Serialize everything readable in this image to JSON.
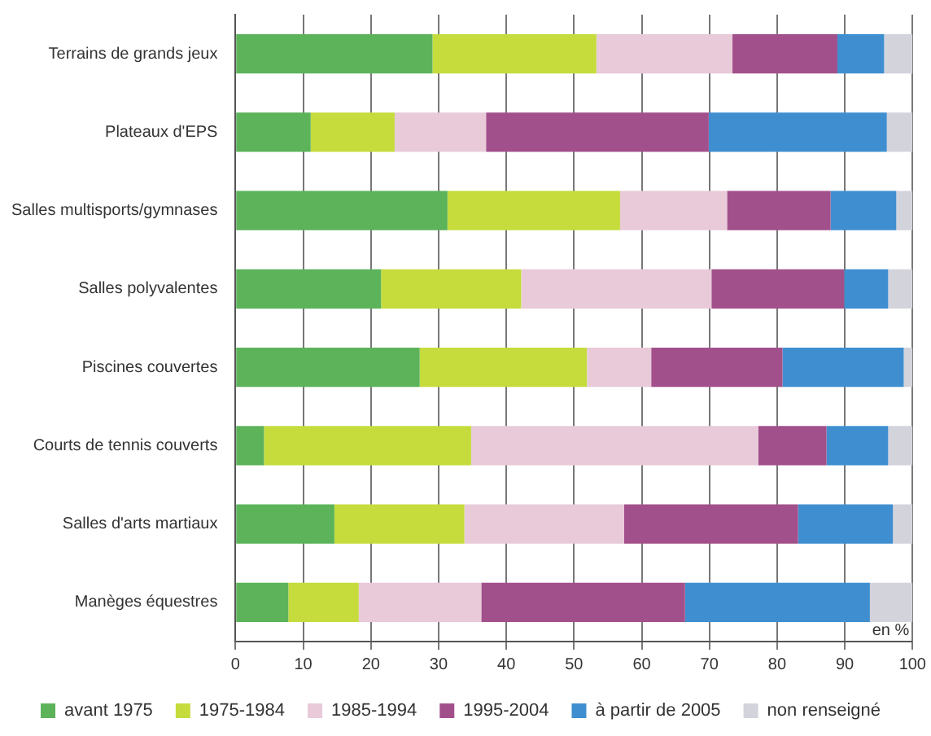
{
  "chart_data": {
    "type": "bar",
    "orientation": "horizontal",
    "stacked": true,
    "categories": [
      "Terrains de grands jeux",
      "Plateaux d'EPS",
      "Salles multisports/gymnases",
      "Salles polyvalentes",
      "Piscines couvertes",
      "Courts de tennis couverts",
      "Salles d'arts martiaux",
      "Manèges équestres"
    ],
    "series": [
      {
        "name": "avant 1975",
        "color": "#5cb35a",
        "values": [
          29.1,
          11.1,
          31.3,
          21.5,
          27.2,
          4.2,
          14.6,
          7.8
        ]
      },
      {
        "name": "1975-1984",
        "color": "#c5dc3c",
        "values": [
          24.2,
          12.4,
          25.5,
          20.7,
          24.7,
          30.6,
          19.2,
          10.4
        ]
      },
      {
        "name": "1985-1994",
        "color": "#e8cad9",
        "values": [
          20.1,
          13.5,
          15.8,
          28.1,
          9.5,
          42.4,
          23.6,
          18.1
        ]
      },
      {
        "name": "1995-2004",
        "color": "#a2508b",
        "values": [
          15.5,
          32.9,
          15.3,
          19.6,
          19.4,
          10.1,
          25.7,
          30.1
        ]
      },
      {
        "name": "à partir de 2005",
        "color": "#3f8fd0",
        "values": [
          6.9,
          26.3,
          9.7,
          6.5,
          17.9,
          9.1,
          14.0,
          27.3
        ]
      },
      {
        "name": "non renseigné",
        "color": "#d3d3dc",
        "values": [
          4.2,
          3.8,
          2.4,
          3.6,
          1.3,
          3.6,
          2.9,
          6.3
        ]
      }
    ],
    "xlim": [
      0,
      100
    ],
    "xticks": [
      0,
      10,
      20,
      30,
      40,
      50,
      60,
      70,
      80,
      90,
      100
    ],
    "grid": "x",
    "legend": "bottom",
    "annotations": [
      "en %"
    ]
  }
}
